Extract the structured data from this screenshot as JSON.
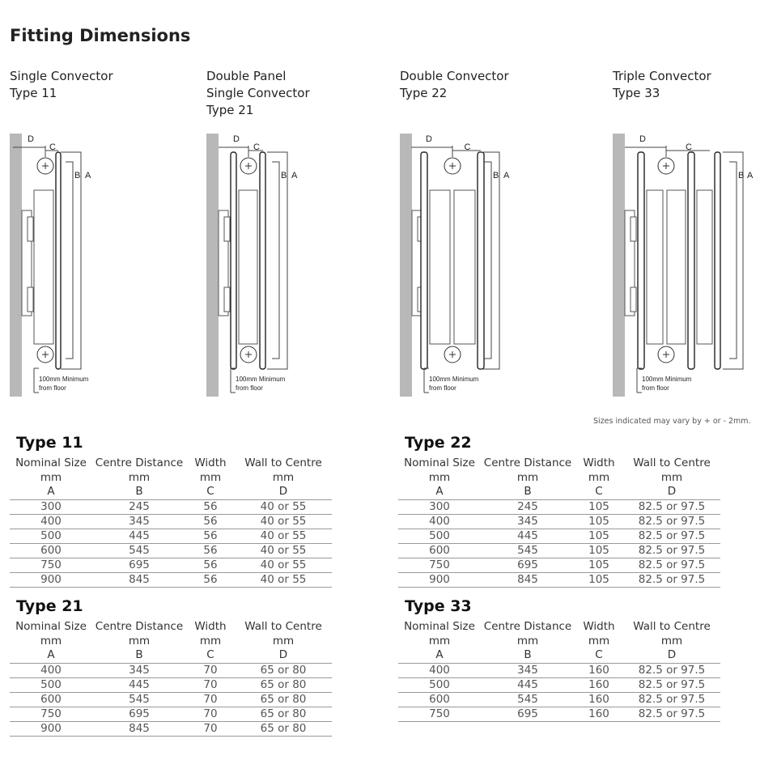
{
  "title": "Fitting Dimensions",
  "diagrams": [
    {
      "id": "type11",
      "title_lines": [
        "Single Convector",
        "Type 11"
      ]
    },
    {
      "id": "type21",
      "title_lines": [
        "Double Panel",
        "Single Convector",
        "Type 21"
      ]
    },
    {
      "id": "type22",
      "title_lines": [
        "Double Convector",
        "Type 22"
      ]
    },
    {
      "id": "type33",
      "title_lines": [
        "Triple Convector",
        "Type 33"
      ]
    }
  ],
  "diagram_labels": {
    "d": "D",
    "c": "C",
    "b": "B",
    "a": "A",
    "floor_line1": "100mm Minimum",
    "floor_line2": "from floor"
  },
  "note": "Sizes indicated may vary by + or - 2mm.",
  "headers": [
    [
      "Nominal Size",
      "Centre Distance",
      "Width",
      "Wall to Centre"
    ],
    [
      "mm",
      "mm",
      "mm",
      "mm"
    ],
    [
      "A",
      "B",
      "C",
      "D"
    ]
  ],
  "tables": [
    {
      "title": "Type 11",
      "rows": [
        [
          "300",
          "245",
          "56",
          "40 or 55"
        ],
        [
          "400",
          "345",
          "56",
          "40 or 55"
        ],
        [
          "500",
          "445",
          "56",
          "40 or 55"
        ],
        [
          "600",
          "545",
          "56",
          "40 or 55"
        ],
        [
          "750",
          "695",
          "56",
          "40 or 55"
        ],
        [
          "900",
          "845",
          "56",
          "40 or 55"
        ]
      ]
    },
    {
      "title": "Type 22",
      "rows": [
        [
          "300",
          "245",
          "105",
          "82.5 or 97.5"
        ],
        [
          "400",
          "345",
          "105",
          "82.5 or 97.5"
        ],
        [
          "500",
          "445",
          "105",
          "82.5 or 97.5"
        ],
        [
          "600",
          "545",
          "105",
          "82.5 or 97.5"
        ],
        [
          "750",
          "695",
          "105",
          "82.5 or 97.5"
        ],
        [
          "900",
          "845",
          "105",
          "82.5 or 97.5"
        ]
      ]
    },
    {
      "title": "Type 21",
      "rows": [
        [
          "400",
          "345",
          "70",
          "65 or 80"
        ],
        [
          "500",
          "445",
          "70",
          "65 or 80"
        ],
        [
          "600",
          "545",
          "70",
          "65 or 80"
        ],
        [
          "750",
          "695",
          "70",
          "65 or 80"
        ],
        [
          "900",
          "845",
          "70",
          "65 or 80"
        ]
      ]
    },
    {
      "title": "Type 33",
      "rows": [
        [
          "400",
          "345",
          "160",
          "82.5 or 97.5"
        ],
        [
          "500",
          "445",
          "160",
          "82.5 or 97.5"
        ],
        [
          "600",
          "545",
          "160",
          "82.5 or 97.5"
        ],
        [
          "750",
          "695",
          "160",
          "82.5 or 97.5"
        ]
      ]
    }
  ]
}
